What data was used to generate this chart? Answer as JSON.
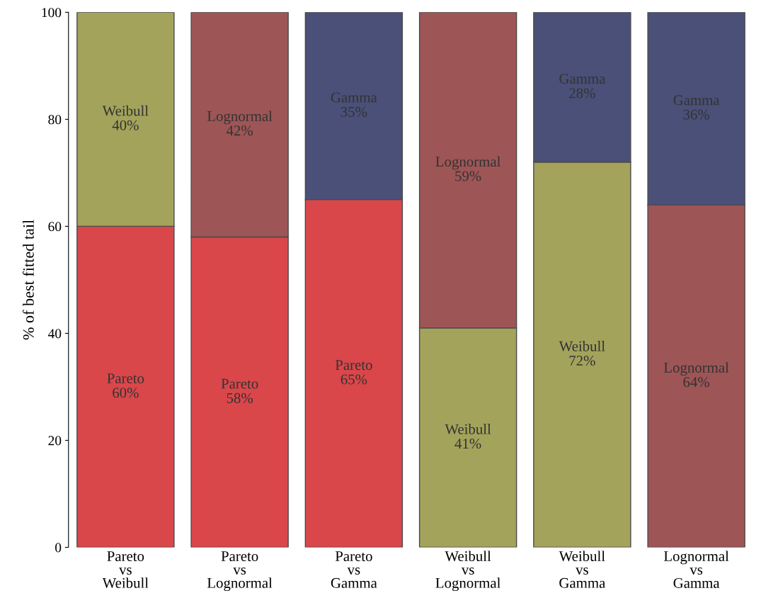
{
  "chart_data": {
    "type": "bar",
    "stacked": true,
    "ylabel": "% of best fitted tail",
    "categories": [
      "Pareto\nvs\nWeibull",
      "Pareto\nvs\nLognormal",
      "Pareto\nvs\nGamma",
      "Weibull\nvs\nLognormal",
      "Weibull\nvs\nGamma",
      "Lognormal\nvs\nGamma"
    ],
    "series": [
      {
        "name": "Pareto",
        "color": "#d9474a",
        "values": [
          60,
          58,
          65,
          null,
          null,
          null
        ],
        "value_labels": [
          "60%",
          "58%",
          "65%",
          null,
          null,
          null
        ]
      },
      {
        "name": "Weibull",
        "color": "#a3a35c",
        "values": [
          40,
          null,
          null,
          41,
          72,
          null
        ],
        "value_labels": [
          "40%",
          null,
          null,
          "41%",
          "72%",
          null
        ]
      },
      {
        "name": "Lognormal",
        "color": "#9e5556",
        "values": [
          null,
          42,
          null,
          59,
          null,
          64
        ],
        "value_labels": [
          null,
          "42%",
          null,
          "59%",
          null,
          "64%"
        ]
      },
      {
        "name": "Gamma",
        "color": "#4a5078",
        "values": [
          null,
          null,
          35,
          null,
          28,
          36
        ],
        "value_labels": [
          null,
          null,
          "35%",
          null,
          "28%",
          "36%"
        ]
      }
    ],
    "ylim": [
      0,
      100
    ],
    "yticks": [
      0,
      20,
      40,
      60,
      80,
      100
    ],
    "grid": false,
    "legend": false
  }
}
